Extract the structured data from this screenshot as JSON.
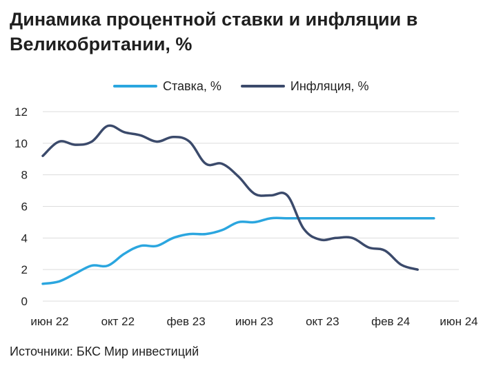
{
  "title": "Динамика процентной ставки и инфляции в Великобритании, %",
  "source": "Источники: БКС Мир инвестиций",
  "colors": {
    "rate": "#2ba6df",
    "inflation": "#3b4a6b",
    "grid": "#dcdcdc"
  },
  "chart_data": {
    "type": "line",
    "title": "Динамика процентной ставки и инфляции в Великобритании, %",
    "x_ticks": [
      "июн 22",
      "окт 22",
      "фев 23",
      "июн 23",
      "окт 23",
      "фев 24",
      "июн 24"
    ],
    "y_ticks": [
      "0",
      "2",
      "4",
      "6",
      "8",
      "10",
      "12"
    ],
    "ylim": [
      0,
      12
    ],
    "xlim": [
      "2022-06",
      "2024-06"
    ],
    "grid": true,
    "legend_position": "top-center",
    "series": [
      {
        "name": "Ставка, %",
        "color_key": "rate",
        "points": [
          [
            "2022-06",
            1.1
          ],
          [
            "2022-07",
            1.25
          ],
          [
            "2022-08",
            1.75
          ],
          [
            "2022-09",
            2.25
          ],
          [
            "2022-10",
            2.25
          ],
          [
            "2022-11",
            3.0
          ],
          [
            "2022-12",
            3.5
          ],
          [
            "2023-01",
            3.5
          ],
          [
            "2023-02",
            4.0
          ],
          [
            "2023-03",
            4.25
          ],
          [
            "2023-04",
            4.25
          ],
          [
            "2023-05",
            4.5
          ],
          [
            "2023-06",
            5.0
          ],
          [
            "2023-07",
            5.0
          ],
          [
            "2023-08",
            5.25
          ],
          [
            "2023-09",
            5.25
          ],
          [
            "2023-10",
            5.25
          ],
          [
            "2023-11",
            5.25
          ],
          [
            "2023-12",
            5.25
          ],
          [
            "2024-01",
            5.25
          ],
          [
            "2024-02",
            5.25
          ],
          [
            "2024-03",
            5.25
          ],
          [
            "2024-04",
            5.25
          ],
          [
            "2024-05",
            5.25
          ],
          [
            "2024-06",
            5.25
          ]
        ]
      },
      {
        "name": "Инфляция, %",
        "color_key": "inflation",
        "points": [
          [
            "2022-06",
            9.2
          ],
          [
            "2022-07",
            10.1
          ],
          [
            "2022-08",
            9.9
          ],
          [
            "2022-09",
            10.1
          ],
          [
            "2022-10",
            11.1
          ],
          [
            "2022-11",
            10.7
          ],
          [
            "2022-12",
            10.5
          ],
          [
            "2023-01",
            10.1
          ],
          [
            "2023-02",
            10.4
          ],
          [
            "2023-03",
            10.1
          ],
          [
            "2023-04",
            8.7
          ],
          [
            "2023-05",
            8.7
          ],
          [
            "2023-06",
            7.9
          ],
          [
            "2023-07",
            6.8
          ],
          [
            "2023-08",
            6.7
          ],
          [
            "2023-09",
            6.7
          ],
          [
            "2023-10",
            4.6
          ],
          [
            "2023-11",
            3.9
          ],
          [
            "2023-12",
            4.0
          ],
          [
            "2024-01",
            4.0
          ],
          [
            "2024-02",
            3.4
          ],
          [
            "2024-03",
            3.2
          ],
          [
            "2024-04",
            2.3
          ],
          [
            "2024-05",
            2.0
          ]
        ]
      }
    ]
  }
}
